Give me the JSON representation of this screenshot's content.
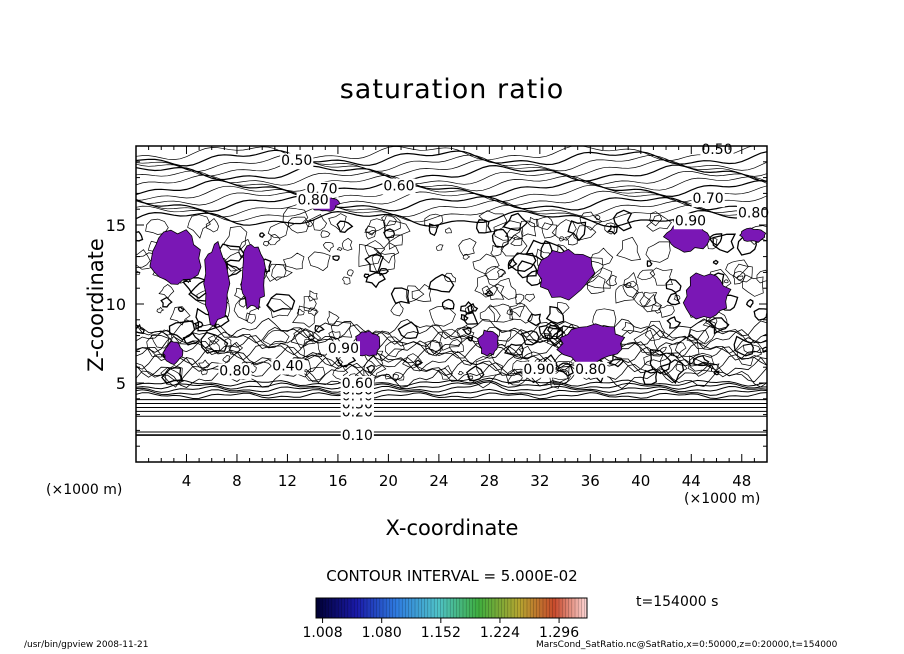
{
  "chart_data": {
    "type": "heatmap",
    "subtype": "contour",
    "title": "saturation ratio",
    "xlabel": "X-coordinate",
    "ylabel": "Z-coordinate",
    "x_unit": "(×1000 m)",
    "xlim": [
      0,
      50
    ],
    "ylim": [
      0,
      20
    ],
    "x_ticks": [
      4,
      8,
      12,
      16,
      20,
      24,
      28,
      32,
      36,
      40,
      44,
      48
    ],
    "y_ticks": [
      5,
      10,
      15
    ],
    "contour_interval_label": "CONTOUR INTERVAL = 5.000E-02",
    "contour_interval": 0.05,
    "lower_contours": [
      {
        "level": 0.05,
        "z": 1.9
      },
      {
        "level": 0.1,
        "z": 1.7,
        "label": "0.10"
      },
      {
        "level": 0.15,
        "z": 2.9
      },
      {
        "level": 0.2,
        "z": 3.2,
        "label": "0.20"
      },
      {
        "level": 0.25,
        "z": 3.45
      },
      {
        "level": 0.3,
        "z": 3.7,
        "label": "0.30"
      },
      {
        "level": 0.35,
        "z": 3.95
      },
      {
        "level": 0.4,
        "z": 4.2,
        "label": "0.40"
      },
      {
        "level": 0.45,
        "z": 4.4
      },
      {
        "level": 0.5,
        "z": 4.6,
        "label": "0.50"
      },
      {
        "level": 0.55,
        "z": 4.8
      },
      {
        "level": 0.6,
        "z": 5.0,
        "label": "0.60"
      }
    ],
    "annotations": [
      {
        "text": "0.50",
        "x": 11.5,
        "z": 19.1
      },
      {
        "text": "0.50",
        "x": 44.8,
        "z": 19.8
      },
      {
        "text": "0.60",
        "x": 19.6,
        "z": 17.5
      },
      {
        "text": "0.70",
        "x": 13.5,
        "z": 17.3
      },
      {
        "text": "0.80",
        "x": 12.8,
        "z": 16.6
      },
      {
        "text": "0.70",
        "x": 44.1,
        "z": 16.7
      },
      {
        "text": "0.80",
        "x": 47.7,
        "z": 15.8
      },
      {
        "text": "0.90",
        "x": 42.7,
        "z": 15.3
      },
      {
        "text": "0.90",
        "x": 15.2,
        "z": 7.2
      },
      {
        "text": "0.80",
        "x": 6.6,
        "z": 5.8
      },
      {
        "text": "0.40",
        "x": 10.8,
        "z": 6.1
      },
      {
        "text": "0.90",
        "x": 30.7,
        "z": 5.9
      },
      {
        "text": "0.80",
        "x": 34.8,
        "z": 5.9
      }
    ],
    "supersaturated_regions": [
      {
        "x": [
          0.9,
          5.2
        ],
        "z": [
          11.0,
          14.8
        ]
      },
      {
        "x": [
          5.3,
          7.4
        ],
        "z": [
          8.6,
          14.0
        ]
      },
      {
        "x": [
          8.2,
          10.3
        ],
        "z": [
          9.6,
          13.8
        ]
      },
      {
        "x": [
          13.7,
          16.1
        ],
        "z": [
          15.8,
          16.9
        ]
      },
      {
        "x": [
          31.6,
          36.3
        ],
        "z": [
          10.3,
          13.6
        ]
      },
      {
        "x": [
          41.9,
          45.5
        ],
        "z": [
          13.3,
          15.2
        ]
      },
      {
        "x": [
          43.3,
          47.2
        ],
        "z": [
          9.0,
          12.0
        ]
      },
      {
        "x": [
          33.4,
          38.7
        ],
        "z": [
          6.2,
          8.8
        ]
      },
      {
        "x": [
          27.1,
          28.8
        ],
        "z": [
          6.7,
          8.4
        ]
      },
      {
        "x": [
          17.3,
          19.4
        ],
        "z": [
          6.6,
          8.3
        ]
      },
      {
        "x": [
          2.1,
          3.7
        ],
        "z": [
          6.2,
          7.6
        ]
      },
      {
        "x": [
          47.8,
          49.9
        ],
        "z": [
          13.9,
          14.8
        ]
      }
    ],
    "colorbar": {
      "ticks": [
        1.008,
        1.08,
        1.152,
        1.224,
        1.296
      ],
      "tick_labels": [
        "1.008",
        "1.080",
        "1.152",
        "1.224",
        "1.296"
      ],
      "range": [
        1.0,
        1.33
      ]
    },
    "fill_color": "#7a17b5",
    "time_label": "t=154000 s"
  },
  "footer": {
    "left": "/usr/bin/gpview   2008-11-21",
    "right": "MarsCond_SatRatio.nc@SatRatio,x=0:50000,z=0:20000,t=154000"
  }
}
